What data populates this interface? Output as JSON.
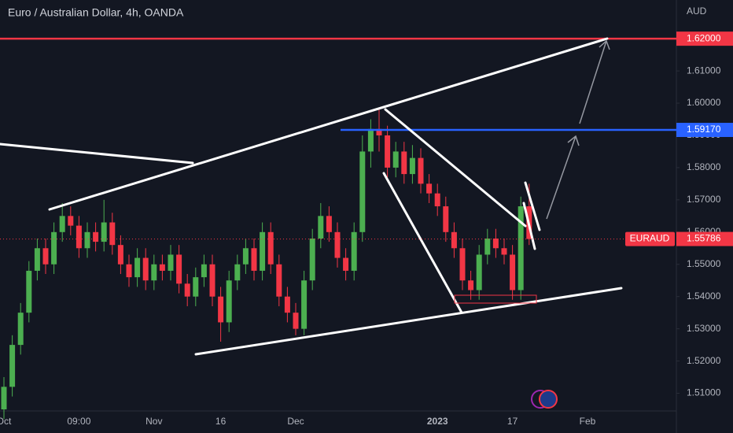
{
  "chart_data": {
    "type": "candlestick",
    "title": "Euro / Australian Dollar, 4h, OANDA",
    "currency": "AUD",
    "symbol": "EURAUD",
    "categories": [
      "Oct",
      null,
      null,
      null,
      null,
      null,
      null,
      null,
      null,
      "09:00",
      null,
      null,
      null,
      null,
      null,
      null,
      null,
      null,
      "Nov",
      null,
      null,
      null,
      null,
      null,
      null,
      null,
      "16",
      null,
      null,
      null,
      null,
      null,
      null,
      null,
      null,
      "Dec",
      null,
      null,
      null,
      null,
      null,
      null,
      null,
      null,
      null,
      null,
      null,
      null,
      null,
      null,
      null,
      null,
      "2023",
      null,
      null,
      null,
      null,
      null,
      null,
      null,
      null,
      "17",
      null,
      null,
      null,
      null,
      null,
      null,
      null,
      null,
      "Feb"
    ],
    "open": [
      1.505,
      1.512,
      1.525,
      1.535,
      1.548,
      1.555,
      1.55,
      1.56,
      1.565,
      1.562,
      1.555,
      1.56,
      1.557,
      1.563,
      1.556,
      1.55,
      1.546,
      1.552,
      1.545,
      1.55,
      1.548,
      1.553,
      1.544,
      1.54,
      1.546,
      1.55,
      1.54,
      1.532,
      1.545,
      1.55,
      1.555,
      1.548,
      1.56,
      1.55,
      1.54,
      1.535,
      1.53,
      1.545,
      1.558,
      1.565,
      1.56,
      1.552,
      1.548,
      1.56,
      1.585,
      1.592,
      1.59,
      1.58,
      1.585,
      1.578,
      1.583,
      1.575,
      1.572,
      1.568,
      1.56,
      1.555,
      1.545,
      1.542,
      1.553,
      1.558,
      1.555,
      1.553,
      1.542,
      1.568,
      null,
      null,
      null,
      null,
      null,
      null,
      null
    ],
    "high": [
      1.515,
      1.528,
      1.538,
      1.551,
      1.558,
      1.558,
      1.563,
      1.569,
      1.568,
      1.565,
      1.563,
      1.563,
      1.57,
      1.566,
      1.559,
      1.553,
      1.555,
      1.555,
      1.553,
      1.553,
      1.556,
      1.556,
      1.547,
      1.549,
      1.553,
      1.553,
      1.543,
      1.548,
      1.553,
      1.558,
      1.558,
      1.563,
      1.563,
      1.553,
      1.543,
      1.538,
      1.548,
      1.561,
      1.569,
      1.568,
      1.563,
      1.555,
      1.563,
      1.59,
      1.595,
      1.598,
      1.593,
      1.588,
      1.588,
      1.587,
      1.586,
      1.578,
      1.575,
      1.571,
      1.563,
      1.558,
      1.548,
      1.556,
      1.561,
      1.561,
      1.558,
      1.556,
      1.571,
      1.575,
      null,
      null,
      null,
      null,
      null,
      null,
      null
    ],
    "low": [
      1.502,
      1.509,
      1.522,
      1.532,
      1.545,
      1.547,
      1.547,
      1.557,
      1.559,
      1.552,
      1.552,
      1.554,
      1.554,
      1.553,
      1.547,
      1.543,
      1.543,
      1.542,
      1.542,
      1.545,
      1.545,
      1.541,
      1.537,
      1.537,
      1.543,
      1.537,
      1.526,
      1.529,
      1.542,
      1.547,
      1.545,
      1.545,
      1.547,
      1.537,
      1.532,
      1.528,
      1.528,
      1.542,
      1.555,
      1.557,
      1.549,
      1.545,
      1.545,
      1.557,
      1.58,
      1.585,
      1.577,
      1.577,
      1.575,
      1.575,
      1.572,
      1.569,
      1.565,
      1.557,
      1.552,
      1.542,
      1.539,
      1.539,
      1.55,
      1.552,
      1.55,
      1.539,
      1.539,
      1.556,
      null,
      null,
      null,
      null,
      null,
      null,
      null
    ],
    "close": [
      1.512,
      1.525,
      1.535,
      1.548,
      1.555,
      1.55,
      1.56,
      1.565,
      1.562,
      1.555,
      1.56,
      1.557,
      1.563,
      1.556,
      1.55,
      1.546,
      1.552,
      1.545,
      1.55,
      1.548,
      1.553,
      1.544,
      1.54,
      1.546,
      1.55,
      1.54,
      1.532,
      1.545,
      1.55,
      1.555,
      1.548,
      1.56,
      1.55,
      1.54,
      1.535,
      1.53,
      1.545,
      1.558,
      1.565,
      1.56,
      1.552,
      1.548,
      1.56,
      1.585,
      1.592,
      1.59,
      1.58,
      1.585,
      1.578,
      1.583,
      1.575,
      1.572,
      1.568,
      1.56,
      1.555,
      1.545,
      1.542,
      1.553,
      1.558,
      1.555,
      1.553,
      1.542,
      1.568,
      1.55786,
      null,
      null,
      null,
      null,
      null,
      null,
      null
    ],
    "up_color": "#4caf50",
    "down_color": "#f23645",
    "last_color": "#f23645",
    "ylim": [
      1.505,
      1.632
    ],
    "yticks": [
      {
        "value": 1.51,
        "label": "1.51000"
      },
      {
        "value": 1.52,
        "label": "1.52000"
      },
      {
        "value": 1.53,
        "label": "1.53000"
      },
      {
        "value": 1.54,
        "label": "1.54000"
      },
      {
        "value": 1.55,
        "label": "1.55000"
      },
      {
        "value": 1.56,
        "label": "1.56000"
      },
      {
        "value": 1.57,
        "label": "1.57000"
      },
      {
        "value": 1.58,
        "label": "1.58000"
      },
      {
        "value": 1.59,
        "label": "1.59000"
      },
      {
        "value": 1.6,
        "label": "1.60000"
      },
      {
        "value": 1.61,
        "label": "1.61000"
      }
    ],
    "levels": [
      {
        "value": 1.62,
        "label": "1.62000",
        "color": "#f23645"
      },
      {
        "value": 1.5917,
        "label": "1.59170",
        "color": "#2962ff"
      }
    ],
    "grid": false
  }
}
